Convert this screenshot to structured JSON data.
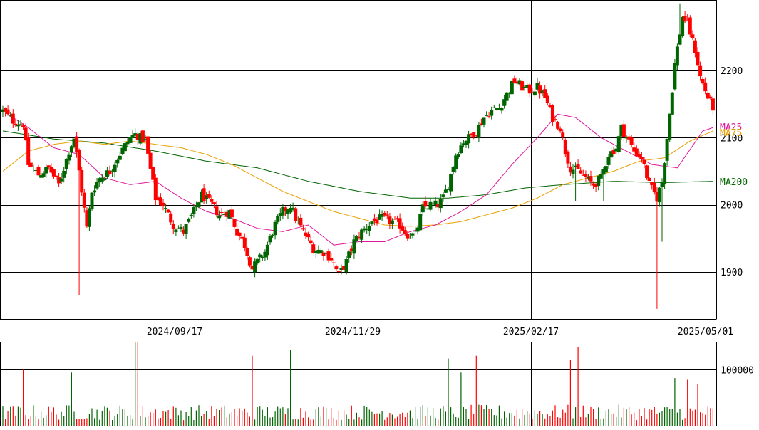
{
  "chart_data": [
    {
      "type": "candlestick",
      "title": "",
      "x_ticks": [
        "2024/09/17",
        "2024/11/29",
        "2025/02/17",
        "2025/05/01"
      ],
      "y_ticks": [
        1900,
        2000,
        2100,
        2200
      ],
      "ylim": [
        1830,
        2305
      ],
      "grid": true,
      "colors": {
        "up": "#006400",
        "down": "#ff0000",
        "ma25": "#e0189a",
        "ma75": "#e8a000",
        "ma200": "#006400"
      },
      "series_labels": {
        "ma25": "MA25",
        "ma75": "MA75",
        "ma200": "MA200"
      },
      "anchors": [
        [
          0,
          2140
        ],
        [
          4,
          2125
        ],
        [
          8,
          2120
        ],
        [
          10,
          2060
        ],
        [
          14,
          2045
        ],
        [
          18,
          2055
        ],
        [
          22,
          2030
        ],
        [
          26,
          2080
        ],
        [
          28,
          2100
        ],
        [
          30,
          2050
        ],
        [
          33,
          1965
        ],
        [
          35,
          2020
        ],
        [
          38,
          2040
        ],
        [
          42,
          2050
        ],
        [
          45,
          2070
        ],
        [
          50,
          2100
        ],
        [
          52,
          2105
        ],
        [
          56,
          2095
        ],
        [
          60,
          2010
        ],
        [
          63,
          2000
        ],
        [
          67,
          1970
        ],
        [
          71,
          1960
        ],
        [
          75,
          1990
        ],
        [
          78,
          2015
        ],
        [
          82,
          2000
        ],
        [
          85,
          1985
        ],
        [
          89,
          1990
        ],
        [
          92,
          1960
        ],
        [
          95,
          1940
        ],
        [
          98,
          1905
        ],
        [
          100,
          1915
        ],
        [
          103,
          1930
        ],
        [
          107,
          1970
        ],
        [
          110,
          1990
        ],
        [
          113,
          2000
        ],
        [
          115,
          1980
        ],
        [
          118,
          1960
        ],
        [
          122,
          1935
        ],
        [
          126,
          1930
        ],
        [
          129,
          1920
        ],
        [
          132,
          1895
        ],
        [
          135,
          1915
        ],
        [
          138,
          1945
        ],
        [
          141,
          1960
        ],
        [
          145,
          1975
        ],
        [
          149,
          1980
        ],
        [
          153,
          1975
        ],
        [
          156,
          1970
        ],
        [
          159,
          1955
        ],
        [
          162,
          1955
        ],
        [
          165,
          1995
        ],
        [
          168,
          2000
        ],
        [
          171,
          2000
        ],
        [
          173,
          2010
        ],
        [
          175,
          2030
        ],
        [
          178,
          2075
        ],
        [
          181,
          2095
        ],
        [
          183,
          2100
        ],
        [
          186,
          2110
        ],
        [
          189,
          2130
        ],
        [
          192,
          2140
        ],
        [
          195,
          2145
        ],
        [
          198,
          2165
        ],
        [
          201,
          2185
        ],
        [
          204,
          2175
        ],
        [
          207,
          2170
        ],
        [
          210,
          2175
        ],
        [
          213,
          2160
        ],
        [
          216,
          2130
        ],
        [
          219,
          2115
        ],
        [
          221,
          2080
        ],
        [
          223,
          2055
        ],
        [
          226,
          2050
        ],
        [
          229,
          2040
        ],
        [
          232,
          2030
        ],
        [
          235,
          2040
        ],
        [
          238,
          2075
        ],
        [
          241,
          2085
        ],
        [
          243,
          2115
        ],
        [
          246,
          2095
        ],
        [
          248,
          2080
        ],
        [
          251,
          2070
        ],
        [
          254,
          2030
        ],
        [
          257,
          2010
        ],
        [
          259,
          2035
        ],
        [
          261,
          2100
        ],
        [
          264,
          2210
        ],
        [
          267,
          2280
        ],
        [
          269,
          2270
        ],
        [
          272,
          2230
        ],
        [
          274,
          2190
        ],
        [
          277,
          2160
        ],
        [
          279,
          2145
        ]
      ],
      "spikes": [
        {
          "i": 30,
          "low": 1865
        },
        {
          "i": 266,
          "high": 2300
        },
        {
          "i": 225,
          "low": 2005
        },
        {
          "i": 236,
          "low": 2005
        },
        {
          "i": 257,
          "low": 1845
        },
        {
          "i": 259,
          "low": 1945
        }
      ],
      "ma_anchors": {
        "ma25": [
          [
            0,
            2140
          ],
          [
            10,
            2115
          ],
          [
            20,
            2085
          ],
          [
            30,
            2075
          ],
          [
            40,
            2040
          ],
          [
            50,
            2030
          ],
          [
            60,
            2035
          ],
          [
            70,
            2010
          ],
          [
            80,
            1990
          ],
          [
            90,
            1980
          ],
          [
            100,
            1965
          ],
          [
            110,
            1960
          ],
          [
            120,
            1970
          ],
          [
            130,
            1940
          ],
          [
            140,
            1945
          ],
          [
            150,
            1945
          ],
          [
            160,
            1960
          ],
          [
            170,
            1970
          ],
          [
            180,
            1990
          ],
          [
            190,
            2015
          ],
          [
            200,
            2060
          ],
          [
            210,
            2100
          ],
          [
            218,
            2135
          ],
          [
            225,
            2130
          ],
          [
            235,
            2100
          ],
          [
            245,
            2080
          ],
          [
            255,
            2060
          ],
          [
            265,
            2055
          ],
          [
            275,
            2110
          ],
          [
            279,
            2115
          ]
        ],
        "ma75": [
          [
            0,
            2050
          ],
          [
            10,
            2080
          ],
          [
            20,
            2090
          ],
          [
            30,
            2095
          ],
          [
            40,
            2090
          ],
          [
            50,
            2095
          ],
          [
            60,
            2090
          ],
          [
            70,
            2085
          ],
          [
            80,
            2075
          ],
          [
            90,
            2060
          ],
          [
            100,
            2040
          ],
          [
            110,
            2020
          ],
          [
            120,
            2005
          ],
          [
            130,
            1990
          ],
          [
            140,
            1980
          ],
          [
            150,
            1970
          ],
          [
            160,
            1968
          ],
          [
            170,
            1970
          ],
          [
            180,
            1975
          ],
          [
            190,
            1985
          ],
          [
            200,
            1995
          ],
          [
            210,
            2010
          ],
          [
            220,
            2030
          ],
          [
            230,
            2040
          ],
          [
            240,
            2050
          ],
          [
            250,
            2065
          ],
          [
            260,
            2070
          ],
          [
            270,
            2095
          ],
          [
            279,
            2110
          ]
        ],
        "ma200": [
          [
            0,
            2110
          ],
          [
            20,
            2098
          ],
          [
            40,
            2092
          ],
          [
            60,
            2080
          ],
          [
            80,
            2065
          ],
          [
            100,
            2055
          ],
          [
            120,
            2035
          ],
          [
            140,
            2020
          ],
          [
            160,
            2010
          ],
          [
            175,
            2010
          ],
          [
            190,
            2015
          ],
          [
            205,
            2025
          ],
          [
            220,
            2030
          ],
          [
            240,
            2035
          ],
          [
            260,
            2033
          ],
          [
            279,
            2035
          ]
        ]
      }
    },
    {
      "type": "bar",
      "title": "",
      "y_ticks": [
        100000
      ],
      "ylim": [
        0,
        150000
      ],
      "grid": true,
      "colors": {
        "up": "#006400",
        "down": "#ff0000"
      },
      "base": 25000,
      "peaks": [
        {
          "i": 8,
          "v": 100000
        },
        {
          "i": 27,
          "v": 95000
        },
        {
          "i": 52,
          "v": 150000
        },
        {
          "i": 53,
          "v": 150000
        },
        {
          "i": 98,
          "v": 125000
        },
        {
          "i": 113,
          "v": 135000
        },
        {
          "i": 175,
          "v": 120000
        },
        {
          "i": 180,
          "v": 95000
        },
        {
          "i": 186,
          "v": 125000
        },
        {
          "i": 223,
          "v": 118000
        },
        {
          "i": 226,
          "v": 140000
        },
        {
          "i": 264,
          "v": 85000
        },
        {
          "i": 269,
          "v": 82000
        },
        {
          "i": 273,
          "v": 75000
        }
      ]
    }
  ]
}
